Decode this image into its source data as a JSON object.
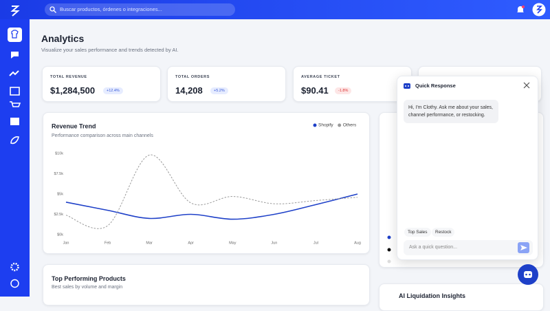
{
  "topbar": {
    "search_placeholder": "Buscar productos, órdenes o integraciones..."
  },
  "header": {
    "title": "Analytics",
    "subtitle": "Visualize your sales performance and trends detected by AI."
  },
  "kpis": [
    {
      "label": "TOTAL REVENUE",
      "value": "$1,284,500",
      "change": "+12.4%"
    },
    {
      "label": "TOTAL ORDERS",
      "value": "14,208",
      "change": "+5.2%"
    },
    {
      "label": "AVERAGE TICKET",
      "value": "$90.41",
      "change": "-1.8%"
    }
  ],
  "chart_data": {
    "type": "line",
    "title": "Revenue Trend",
    "subtitle": "Performance comparison across main channels",
    "categories": [
      "Jan",
      "Feb",
      "Mar",
      "Apr",
      "May",
      "Jun",
      "Jul",
      "Aug"
    ],
    "series": [
      {
        "name": "Shopify",
        "color": "#1e40c8",
        "values": [
          4000,
          3000,
          2000,
          2500,
          1900,
          2500,
          3700,
          5000
        ]
      },
      {
        "name": "Others",
        "color": "#9a9a9a",
        "values": [
          2400,
          1100,
          9800,
          3900,
          4700,
          3800,
          4200,
          4600
        ]
      }
    ],
    "ylim": [
      0,
      10000
    ],
    "yticks": [
      {
        "value": 0,
        "label": "$0k"
      },
      {
        "value": 2500,
        "label": "$2.5k"
      },
      {
        "value": 5000,
        "label": "$5k"
      },
      {
        "value": 7500,
        "label": "$7.5k"
      },
      {
        "value": 10000,
        "label": "$10k"
      }
    ],
    "grid": false,
    "legend": "top-right"
  },
  "products_card": {
    "title": "Top Performing Products",
    "subtitle": "Best sales by volume and margin"
  },
  "insights_card": {
    "title": "AI Liquidation Insights"
  },
  "chat": {
    "title": "Quick Response",
    "message": "Hi, I'm Clothy. Ask me about your sales, channel performance, or restocking.",
    "chips": [
      "Top Sales",
      "Restock"
    ],
    "input_placeholder": "Ask a quick question..."
  }
}
